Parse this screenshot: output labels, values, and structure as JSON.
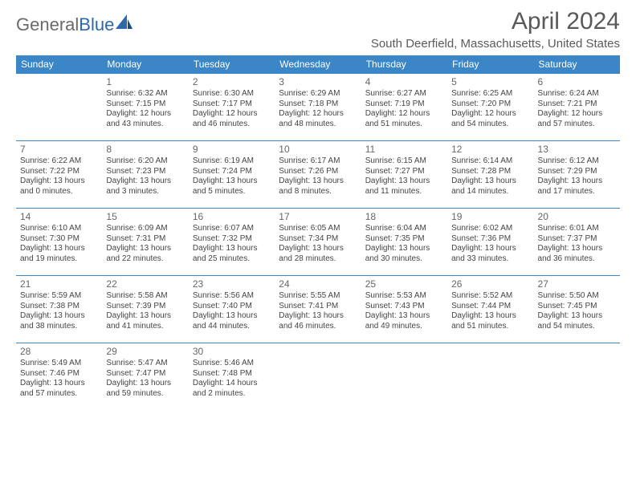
{
  "logo": {
    "part1": "General",
    "part2": "Blue"
  },
  "header": {
    "title": "April 2024",
    "location": "South Deerfield, Massachusetts, United States"
  },
  "colors": {
    "header_bg": "#3b86c6",
    "header_text": "#ffffff",
    "row_border": "#3b86c6",
    "title_color": "#595959",
    "body_text": "#444444"
  },
  "weekdays": [
    "Sunday",
    "Monday",
    "Tuesday",
    "Wednesday",
    "Thursday",
    "Friday",
    "Saturday"
  ],
  "weeks": [
    [
      null,
      {
        "n": "1",
        "sr": "Sunrise: 6:32 AM",
        "ss": "Sunset: 7:15 PM",
        "dl": "Daylight: 12 hours and 43 minutes."
      },
      {
        "n": "2",
        "sr": "Sunrise: 6:30 AM",
        "ss": "Sunset: 7:17 PM",
        "dl": "Daylight: 12 hours and 46 minutes."
      },
      {
        "n": "3",
        "sr": "Sunrise: 6:29 AM",
        "ss": "Sunset: 7:18 PM",
        "dl": "Daylight: 12 hours and 48 minutes."
      },
      {
        "n": "4",
        "sr": "Sunrise: 6:27 AM",
        "ss": "Sunset: 7:19 PM",
        "dl": "Daylight: 12 hours and 51 minutes."
      },
      {
        "n": "5",
        "sr": "Sunrise: 6:25 AM",
        "ss": "Sunset: 7:20 PM",
        "dl": "Daylight: 12 hours and 54 minutes."
      },
      {
        "n": "6",
        "sr": "Sunrise: 6:24 AM",
        "ss": "Sunset: 7:21 PM",
        "dl": "Daylight: 12 hours and 57 minutes."
      }
    ],
    [
      {
        "n": "7",
        "sr": "Sunrise: 6:22 AM",
        "ss": "Sunset: 7:22 PM",
        "dl": "Daylight: 13 hours and 0 minutes."
      },
      {
        "n": "8",
        "sr": "Sunrise: 6:20 AM",
        "ss": "Sunset: 7:23 PM",
        "dl": "Daylight: 13 hours and 3 minutes."
      },
      {
        "n": "9",
        "sr": "Sunrise: 6:19 AM",
        "ss": "Sunset: 7:24 PM",
        "dl": "Daylight: 13 hours and 5 minutes."
      },
      {
        "n": "10",
        "sr": "Sunrise: 6:17 AM",
        "ss": "Sunset: 7:26 PM",
        "dl": "Daylight: 13 hours and 8 minutes."
      },
      {
        "n": "11",
        "sr": "Sunrise: 6:15 AM",
        "ss": "Sunset: 7:27 PM",
        "dl": "Daylight: 13 hours and 11 minutes."
      },
      {
        "n": "12",
        "sr": "Sunrise: 6:14 AM",
        "ss": "Sunset: 7:28 PM",
        "dl": "Daylight: 13 hours and 14 minutes."
      },
      {
        "n": "13",
        "sr": "Sunrise: 6:12 AM",
        "ss": "Sunset: 7:29 PM",
        "dl": "Daylight: 13 hours and 17 minutes."
      }
    ],
    [
      {
        "n": "14",
        "sr": "Sunrise: 6:10 AM",
        "ss": "Sunset: 7:30 PM",
        "dl": "Daylight: 13 hours and 19 minutes."
      },
      {
        "n": "15",
        "sr": "Sunrise: 6:09 AM",
        "ss": "Sunset: 7:31 PM",
        "dl": "Daylight: 13 hours and 22 minutes."
      },
      {
        "n": "16",
        "sr": "Sunrise: 6:07 AM",
        "ss": "Sunset: 7:32 PM",
        "dl": "Daylight: 13 hours and 25 minutes."
      },
      {
        "n": "17",
        "sr": "Sunrise: 6:05 AM",
        "ss": "Sunset: 7:34 PM",
        "dl": "Daylight: 13 hours and 28 minutes."
      },
      {
        "n": "18",
        "sr": "Sunrise: 6:04 AM",
        "ss": "Sunset: 7:35 PM",
        "dl": "Daylight: 13 hours and 30 minutes."
      },
      {
        "n": "19",
        "sr": "Sunrise: 6:02 AM",
        "ss": "Sunset: 7:36 PM",
        "dl": "Daylight: 13 hours and 33 minutes."
      },
      {
        "n": "20",
        "sr": "Sunrise: 6:01 AM",
        "ss": "Sunset: 7:37 PM",
        "dl": "Daylight: 13 hours and 36 minutes."
      }
    ],
    [
      {
        "n": "21",
        "sr": "Sunrise: 5:59 AM",
        "ss": "Sunset: 7:38 PM",
        "dl": "Daylight: 13 hours and 38 minutes."
      },
      {
        "n": "22",
        "sr": "Sunrise: 5:58 AM",
        "ss": "Sunset: 7:39 PM",
        "dl": "Daylight: 13 hours and 41 minutes."
      },
      {
        "n": "23",
        "sr": "Sunrise: 5:56 AM",
        "ss": "Sunset: 7:40 PM",
        "dl": "Daylight: 13 hours and 44 minutes."
      },
      {
        "n": "24",
        "sr": "Sunrise: 5:55 AM",
        "ss": "Sunset: 7:41 PM",
        "dl": "Daylight: 13 hours and 46 minutes."
      },
      {
        "n": "25",
        "sr": "Sunrise: 5:53 AM",
        "ss": "Sunset: 7:43 PM",
        "dl": "Daylight: 13 hours and 49 minutes."
      },
      {
        "n": "26",
        "sr": "Sunrise: 5:52 AM",
        "ss": "Sunset: 7:44 PM",
        "dl": "Daylight: 13 hours and 51 minutes."
      },
      {
        "n": "27",
        "sr": "Sunrise: 5:50 AM",
        "ss": "Sunset: 7:45 PM",
        "dl": "Daylight: 13 hours and 54 minutes."
      }
    ],
    [
      {
        "n": "28",
        "sr": "Sunrise: 5:49 AM",
        "ss": "Sunset: 7:46 PM",
        "dl": "Daylight: 13 hours and 57 minutes."
      },
      {
        "n": "29",
        "sr": "Sunrise: 5:47 AM",
        "ss": "Sunset: 7:47 PM",
        "dl": "Daylight: 13 hours and 59 minutes."
      },
      {
        "n": "30",
        "sr": "Sunrise: 5:46 AM",
        "ss": "Sunset: 7:48 PM",
        "dl": "Daylight: 14 hours and 2 minutes."
      },
      null,
      null,
      null,
      null
    ]
  ]
}
